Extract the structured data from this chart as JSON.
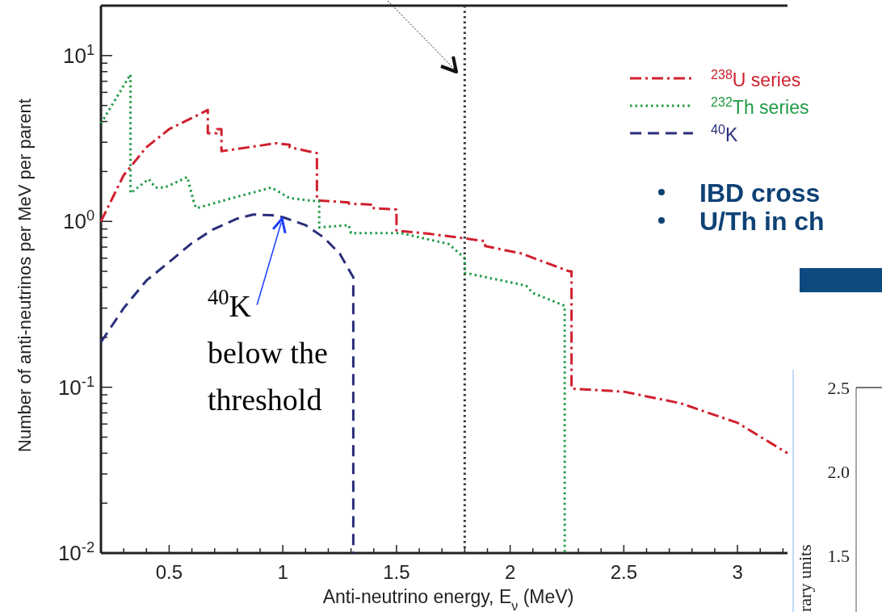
{
  "chart_data": [
    {
      "type": "line",
      "xlabel": "Anti-neutrino energy, E$_{ν}$ (MeV)",
      "ylabel": "Number of anti-neutrinos per MeV per parent",
      "log": "y",
      "xlim": [
        0.2,
        3.22
      ],
      "ylim": [
        0.01,
        20
      ],
      "xticks": [
        {
          "value": 0.3,
          "label": null
        },
        {
          "value": 0.4,
          "label": null
        },
        0.5,
        {
          "value": 0.6,
          "label": null
        },
        {
          "value": 0.7,
          "label": null
        },
        {
          "value": 0.8,
          "label": null
        },
        {
          "value": 0.9,
          "label": null
        },
        1,
        {
          "value": 1.1,
          "label": null
        },
        {
          "value": 1.2,
          "label": null
        },
        {
          "value": 1.3,
          "label": null
        },
        {
          "value": 1.4,
          "label": null
        },
        1.5,
        {
          "value": 1.6,
          "label": null
        },
        {
          "value": 1.7,
          "label": null
        },
        {
          "value": 1.8,
          "label": null
        },
        {
          "value": 1.9,
          "label": null
        },
        2,
        {
          "value": 2.1,
          "label": null
        },
        {
          "value": 2.2,
          "label": null
        },
        {
          "value": 2.3,
          "label": null
        },
        {
          "value": 2.4,
          "label": null
        },
        2.5,
        {
          "value": 2.6,
          "label": null
        },
        {
          "value": 2.7,
          "label": null
        },
        {
          "value": 2.8,
          "label": null
        },
        {
          "value": 2.9,
          "label": null
        },
        3,
        {
          "value": 3.1,
          "label": null
        },
        {
          "value": 3.2,
          "label": null
        }
      ],
      "yticks": [
        {
          "value": 0.01,
          "label": "10$^{-2}$"
        },
        {
          "value": 0.02,
          "label": null
        },
        {
          "value": 0.03,
          "label": null
        },
        {
          "value": 0.04,
          "label": null
        },
        {
          "value": 0.05,
          "label": null
        },
        {
          "value": 0.06,
          "label": null
        },
        {
          "value": 0.07,
          "label": null
        },
        {
          "value": 0.08,
          "label": null
        },
        {
          "value": 0.09,
          "label": null
        },
        {
          "value": 0.1,
          "label": "10$^{-1}$"
        },
        {
          "value": 0.2,
          "label": null
        },
        {
          "value": 0.3,
          "label": null
        },
        {
          "value": 0.4,
          "label": null
        },
        {
          "value": 0.5,
          "label": null
        },
        {
          "value": 0.6,
          "label": null
        },
        {
          "value": 0.7,
          "label": null
        },
        {
          "value": 0.8,
          "label": null
        },
        {
          "value": 0.9,
          "label": null
        },
        {
          "value": 1,
          "label": "10$^{0}$"
        },
        {
          "value": 2,
          "label": null
        },
        {
          "value": 3,
          "label": null
        },
        {
          "value": 4,
          "label": null
        },
        {
          "value": 5,
          "label": null
        },
        {
          "value": 6,
          "label": null
        },
        {
          "value": 7,
          "label": null
        },
        {
          "value": 8,
          "label": null
        },
        {
          "value": 9,
          "label": null
        },
        {
          "value": 10,
          "label": "10$^{1}$"
        },
        {
          "value": 20,
          "label": null
        }
      ],
      "legend": "top right",
      "series": [
        {
          "name": "$^{238}$U series",
          "color": "#d0202e",
          "line_style": "dashdot",
          "x": [
            0.2,
            0.3,
            0.4,
            0.5,
            0.6,
            0.67,
            0.67,
            0.71,
            0.71,
            0.73,
            0.73,
            0.85,
            0.97,
            1.03,
            1.03,
            1.15,
            1.15,
            1.29,
            1.29,
            1.4,
            1.4,
            1.5,
            1.5,
            1.65,
            1.8,
            1.89,
            1.89,
            2.05,
            2.26,
            2.27,
            2.27,
            2.5,
            2.75,
            3.0,
            3.22
          ],
          "values": [
            1.0,
            1.9,
            2.8,
            3.6,
            4.2,
            4.7,
            3.4,
            3.4,
            3.6,
            3.6,
            2.65,
            2.8,
            2.96,
            2.9,
            2.8,
            2.58,
            1.34,
            1.3,
            1.28,
            1.26,
            1.2,
            1.18,
            0.88,
            0.84,
            0.79,
            0.76,
            0.71,
            0.64,
            0.5,
            0.5,
            0.098,
            0.094,
            0.08,
            0.061,
            0.04
          ]
        },
        {
          "name": "$^{232}$Th series",
          "color": "#1f9a45",
          "line_style": "dotted",
          "x": [
            0.2,
            0.33,
            0.33,
            0.41,
            0.44,
            0.48,
            0.58,
            0.61,
            0.62,
            0.75,
            0.95,
            1.03,
            1.16,
            1.16,
            1.29,
            1.3,
            1.52,
            1.73,
            1.8,
            1.8,
            2.07,
            2.1,
            2.24,
            2.24
          ],
          "values": [
            3.9,
            7.7,
            1.48,
            1.8,
            1.6,
            1.6,
            1.85,
            1.28,
            1.2,
            1.35,
            1.6,
            1.38,
            1.32,
            0.92,
            0.95,
            0.85,
            0.85,
            0.73,
            0.6,
            0.49,
            0.41,
            0.37,
            0.31,
            0.01
          ]
        },
        {
          "name": "$^{40}$K",
          "color": "#2a2f7a",
          "line_style": "dashed",
          "x": [
            0.2,
            0.3,
            0.4,
            0.48,
            0.6,
            0.69,
            0.8,
            0.87,
            0.95,
            1.0,
            1.1,
            1.18,
            1.25,
            1.31,
            1.31
          ],
          "values": [
            0.187,
            0.3,
            0.44,
            0.54,
            0.74,
            0.89,
            1.04,
            1.1,
            1.09,
            1.06,
            0.95,
            0.8,
            0.64,
            0.46,
            0.01
          ]
        }
      ],
      "ref_lines": [
        {
          "axis": "x",
          "value": 1.8,
          "color": "#333333",
          "line_style": "dotted"
        }
      ],
      "annotations": [
        {
          "text": "$^{40}$K below the threshold",
          "x": 1.0,
          "y": 1.1
        },
        "IBD cross",
        "U/Th in ch"
      ]
    },
    {
      "type": "other",
      "ylabel": "rary units",
      "annotations": [
        "2.5",
        "2.0",
        "1.5"
      ]
    }
  ]
}
